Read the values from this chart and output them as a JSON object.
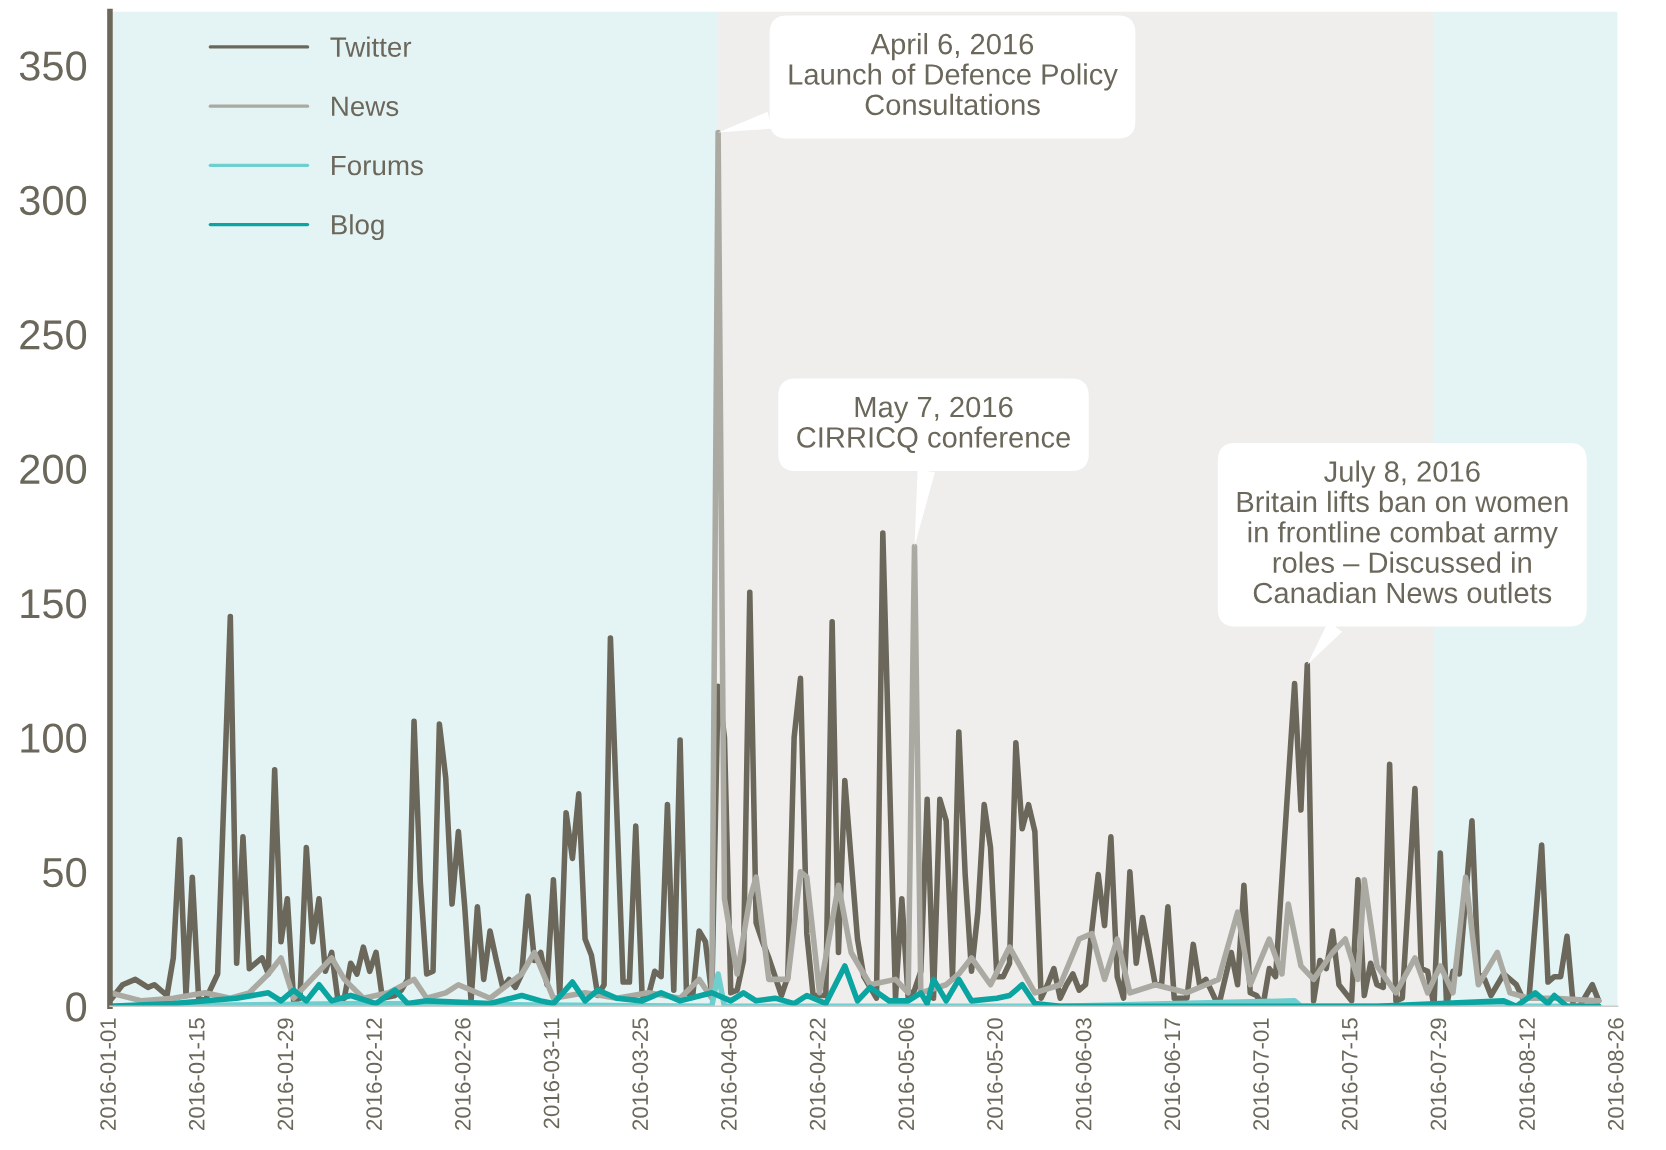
{
  "chart_data": {
    "type": "line",
    "xlim": [
      "2016-01-01",
      "2016-08-26"
    ],
    "xticks": [
      "2016-01-01",
      "2016-01-15",
      "2016-01-29",
      "2016-02-12",
      "2016-02-26",
      "2016-03-11",
      "2016-03-25",
      "2016-04-08",
      "2016-04-22",
      "2016-05-06",
      "2016-05-20",
      "2016-06-03",
      "2016-06-17",
      "2016-07-01",
      "2016-07-15",
      "2016-07-29",
      "2016-08-12",
      "2016-08-26"
    ],
    "ylim": [
      0,
      370
    ],
    "yticks": [
      0,
      50,
      100,
      150,
      200,
      250,
      300,
      350
    ],
    "grid": false,
    "legend": "top left",
    "marker": "none",
    "line_style": "solid",
    "bands": [
      {
        "axis": "x",
        "from": "2016-01-01",
        "to": "2016-04-06",
        "color": "#e4f4f5"
      },
      {
        "axis": "x",
        "from": "2016-04-06",
        "to": "2016-07-28",
        "color": "#efeeed"
      },
      {
        "axis": "x",
        "from": "2016-07-28",
        "to": "2016-08-26",
        "color": "#e4f4f5"
      }
    ],
    "annotations": [
      {
        "text": "April 6, 2016\nLaunch of Defence Policy\nConsultations",
        "x": "2016-04-06",
        "y": 325
      },
      {
        "text": "May 7, 2016\nCIRRICQ conference",
        "x": "2016-05-07",
        "y": 171
      },
      {
        "text": "July 8, 2016\nBritain lifts ban on women\nin frontline combat army\nroles – Discussed in\nCanadian News outlets",
        "x": "2016-07-08",
        "y": 127
      }
    ],
    "series": [
      {
        "name": "Twitter",
        "color": "#6b675a",
        "x": [
          "2016-01-01",
          "2016-01-03",
          "2016-01-05",
          "2016-01-07",
          "2016-01-08",
          "2016-01-10",
          "2016-01-11",
          "2016-01-12",
          "2016-01-13",
          "2016-01-14",
          "2016-01-15",
          "2016-01-16",
          "2016-01-18",
          "2016-01-20",
          "2016-01-21",
          "2016-01-22",
          "2016-01-23",
          "2016-01-25",
          "2016-01-26",
          "2016-01-27",
          "2016-01-28",
          "2016-01-29",
          "2016-01-30",
          "2016-01-31",
          "2016-02-01",
          "2016-02-02",
          "2016-02-03",
          "2016-02-04",
          "2016-02-05",
          "2016-02-06",
          "2016-02-07",
          "2016-02-08",
          "2016-02-09",
          "2016-02-10",
          "2016-02-11",
          "2016-02-12",
          "2016-02-13",
          "2016-02-15",
          "2016-02-16",
          "2016-02-17",
          "2016-02-18",
          "2016-02-19",
          "2016-02-20",
          "2016-02-21",
          "2016-02-22",
          "2016-02-23",
          "2016-02-24",
          "2016-02-25",
          "2016-02-26",
          "2016-02-27",
          "2016-02-28",
          "2016-02-29",
          "2016-03-01",
          "2016-03-02",
          "2016-03-03",
          "2016-03-04",
          "2016-03-05",
          "2016-03-06",
          "2016-03-07",
          "2016-03-08",
          "2016-03-09",
          "2016-03-10",
          "2016-03-11",
          "2016-03-12",
          "2016-03-13",
          "2016-03-14",
          "2016-03-15",
          "2016-03-16",
          "2016-03-17",
          "2016-03-18",
          "2016-03-19",
          "2016-03-20",
          "2016-03-22",
          "2016-03-23",
          "2016-03-24",
          "2016-03-25",
          "2016-03-26",
          "2016-03-27",
          "2016-03-28",
          "2016-03-29",
          "2016-03-30",
          "2016-03-31",
          "2016-04-01",
          "2016-04-02",
          "2016-04-03",
          "2016-04-04",
          "2016-04-05",
          "2016-04-06",
          "2016-04-07",
          "2016-04-08",
          "2016-04-09",
          "2016-04-10",
          "2016-04-11",
          "2016-04-12",
          "2016-04-13",
          "2016-04-14",
          "2016-04-16",
          "2016-04-17",
          "2016-04-18",
          "2016-04-19",
          "2016-04-20",
          "2016-04-21",
          "2016-04-23",
          "2016-04-24",
          "2016-04-25",
          "2016-04-26",
          "2016-04-28",
          "2016-04-29",
          "2016-05-01",
          "2016-05-02",
          "2016-05-04",
          "2016-05-05",
          "2016-05-06",
          "2016-05-07",
          "2016-05-08",
          "2016-05-09",
          "2016-05-10",
          "2016-05-11",
          "2016-05-12",
          "2016-05-13",
          "2016-05-14",
          "2016-05-15",
          "2016-05-16",
          "2016-05-17",
          "2016-05-18",
          "2016-05-19",
          "2016-05-20",
          "2016-05-21",
          "2016-05-22",
          "2016-05-23",
          "2016-05-24",
          "2016-05-25",
          "2016-05-26",
          "2016-05-27",
          "2016-05-28",
          "2016-05-29",
          "2016-05-30",
          "2016-05-31",
          "2016-06-01",
          "2016-06-02",
          "2016-06-03",
          "2016-06-05",
          "2016-06-06",
          "2016-06-07",
          "2016-06-08",
          "2016-06-09",
          "2016-06-10",
          "2016-06-11",
          "2016-06-12",
          "2016-06-13",
          "2016-06-14",
          "2016-06-15",
          "2016-06-16",
          "2016-06-17",
          "2016-06-19",
          "2016-06-20",
          "2016-06-21",
          "2016-06-22",
          "2016-06-24",
          "2016-06-26",
          "2016-06-27",
          "2016-06-28",
          "2016-06-29",
          "2016-06-30",
          "2016-07-01",
          "2016-07-02",
          "2016-07-03",
          "2016-07-06",
          "2016-07-07",
          "2016-07-08",
          "2016-07-09",
          "2016-07-10",
          "2016-07-11",
          "2016-07-12",
          "2016-07-13",
          "2016-07-15",
          "2016-07-16",
          "2016-07-17",
          "2016-07-18",
          "2016-07-19",
          "2016-07-20",
          "2016-07-21",
          "2016-07-22",
          "2016-07-23",
          "2016-07-25",
          "2016-07-26",
          "2016-07-27",
          "2016-07-28",
          "2016-07-29",
          "2016-07-30",
          "2016-07-31",
          "2016-08-01",
          "2016-08-03",
          "2016-08-04",
          "2016-08-05",
          "2016-08-06",
          "2016-08-07",
          "2016-08-08",
          "2016-08-10",
          "2016-08-11",
          "2016-08-12",
          "2016-08-14",
          "2016-08-15",
          "2016-08-16",
          "2016-08-17",
          "2016-08-18",
          "2016-08-19",
          "2016-08-20",
          "2016-08-22",
          "2016-08-23"
        ],
        "values": [
          2,
          8,
          10,
          7,
          8,
          4,
          18,
          62,
          4,
          48,
          3,
          2,
          12,
          145,
          16,
          63,
          14,
          18,
          12,
          88,
          24,
          40,
          2,
          3,
          59,
          24,
          40,
          13,
          20,
          2,
          3,
          16,
          12,
          22,
          13,
          20,
          3,
          4,
          6,
          10,
          106,
          46,
          12,
          13,
          105,
          85,
          38,
          65,
          37,
          2,
          37,
          10,
          28,
          17,
          7,
          10,
          7,
          12,
          41,
          17,
          20,
          8,
          47,
          4,
          72,
          55,
          79,
          25,
          19,
          4,
          8,
          137,
          9,
          9,
          67,
          4,
          4,
          13,
          11,
          75,
          6,
          99,
          5,
          4,
          28,
          24,
          4,
          119,
          100,
          5,
          6,
          17,
          154,
          31,
          24,
          18,
          4,
          11,
          100,
          122,
          27,
          4,
          4,
          143,
          20,
          84,
          25,
          11,
          3,
          176,
          3,
          40,
          3,
          6,
          13,
          77,
          3,
          77,
          69,
          11,
          102,
          49,
          13,
          35,
          75,
          59,
          11,
          11,
          16,
          98,
          66,
          75,
          65,
          3,
          8,
          14,
          3,
          8,
          12,
          6,
          8,
          49,
          30,
          63,
          11,
          3,
          50,
          16,
          33,
          21,
          8,
          8,
          37,
          3,
          3,
          23,
          8,
          10,
          0,
          20,
          8,
          45,
          5,
          4,
          0,
          14,
          11,
          120,
          73,
          127,
          2,
          17,
          14,
          28,
          8,
          2,
          47,
          4,
          16,
          8,
          7,
          90,
          2,
          3,
          81,
          14,
          13,
          0,
          57,
          0,
          13,
          12,
          69,
          12,
          10,
          4,
          8,
          12,
          8,
          3,
          3,
          60,
          9,
          11,
          11,
          26,
          0,
          0,
          8,
          2
        ]
      },
      {
        "name": "News",
        "color": "#abaaa2",
        "x": [
          "2016-01-01",
          "2016-01-06",
          "2016-01-11",
          "2016-01-16",
          "2016-01-20",
          "2016-01-23",
          "2016-01-26",
          "2016-01-28",
          "2016-01-30",
          "2016-02-05",
          "2016-02-07",
          "2016-02-10",
          "2016-02-14",
          "2016-02-18",
          "2016-02-20",
          "2016-02-23",
          "2016-02-25",
          "2016-03-01",
          "2016-03-06",
          "2016-03-08",
          "2016-03-11",
          "2016-03-16",
          "2016-03-21",
          "2016-03-26",
          "2016-03-31",
          "2016-04-03",
          "2016-04-05",
          "2016-04-06",
          "2016-04-07",
          "2016-04-09",
          "2016-04-11",
          "2016-04-12",
          "2016-04-14",
          "2016-04-17",
          "2016-04-19",
          "2016-04-20",
          "2016-04-22",
          "2016-04-25",
          "2016-04-27",
          "2016-04-30",
          "2016-05-04",
          "2016-05-06",
          "2016-05-07",
          "2016-05-08",
          "2016-05-12",
          "2016-05-14",
          "2016-05-16",
          "2016-05-19",
          "2016-05-22",
          "2016-05-26",
          "2016-05-30",
          "2016-06-02",
          "2016-06-04",
          "2016-06-06",
          "2016-06-08",
          "2016-06-10",
          "2016-06-14",
          "2016-06-19",
          "2016-06-24",
          "2016-06-27",
          "2016-06-29",
          "2016-07-02",
          "2016-07-04",
          "2016-07-05",
          "2016-07-07",
          "2016-07-09",
          "2016-07-12",
          "2016-07-14",
          "2016-07-16",
          "2016-07-17",
          "2016-07-19",
          "2016-07-22",
          "2016-07-25",
          "2016-07-27",
          "2016-07-29",
          "2016-07-31",
          "2016-08-02",
          "2016-08-04",
          "2016-08-07",
          "2016-08-09",
          "2016-08-12",
          "2016-08-16",
          "2016-08-23"
        ],
        "values": [
          5,
          2,
          3,
          5,
          3,
          5,
          12,
          18,
          3,
          18,
          10,
          3,
          5,
          10,
          3,
          5,
          8,
          3,
          12,
          20,
          3,
          5,
          3,
          5,
          3,
          10,
          3,
          325,
          40,
          12,
          40,
          48,
          10,
          10,
          50,
          48,
          5,
          45,
          20,
          8,
          10,
          5,
          171,
          5,
          8,
          12,
          18,
          8,
          22,
          5,
          8,
          25,
          27,
          10,
          25,
          5,
          8,
          5,
          10,
          35,
          8,
          25,
          12,
          38,
          15,
          10,
          20,
          25,
          10,
          47,
          15,
          5,
          18,
          5,
          15,
          5,
          48,
          8,
          20,
          5,
          3,
          3,
          2
        ]
      },
      {
        "name": "Forums",
        "color": "#6fcfcf",
        "x": [
          "2016-01-01",
          "2016-02-10",
          "2016-04-05",
          "2016-04-06",
          "2016-04-07",
          "2016-05-30",
          "2016-07-06",
          "2016-07-07",
          "2016-08-23"
        ],
        "values": [
          0,
          1,
          0,
          12,
          0,
          0,
          2,
          0,
          0
        ]
      },
      {
        "name": "Blog",
        "color": "#0aa5a0",
        "x": [
          "2016-01-01",
          "2016-01-11",
          "2016-01-21",
          "2016-01-26",
          "2016-01-28",
          "2016-01-30",
          "2016-02-01",
          "2016-02-03",
          "2016-02-05",
          "2016-02-08",
          "2016-02-12",
          "2016-02-15",
          "2016-02-17",
          "2016-02-20",
          "2016-03-01",
          "2016-03-06",
          "2016-03-09",
          "2016-03-11",
          "2016-03-14",
          "2016-03-16",
          "2016-03-18",
          "2016-03-21",
          "2016-03-25",
          "2016-03-28",
          "2016-03-31",
          "2016-04-05",
          "2016-04-08",
          "2016-04-10",
          "2016-04-12",
          "2016-04-15",
          "2016-04-18",
          "2016-04-20",
          "2016-04-23",
          "2016-04-26",
          "2016-04-28",
          "2016-04-30",
          "2016-05-03",
          "2016-05-06",
          "2016-05-08",
          "2016-05-09",
          "2016-05-10",
          "2016-05-12",
          "2016-05-14",
          "2016-05-16",
          "2016-05-20",
          "2016-05-22",
          "2016-05-24",
          "2016-05-26",
          "2016-05-30",
          "2016-07-19",
          "2016-08-08",
          "2016-08-10",
          "2016-08-13",
          "2016-08-15",
          "2016-08-16",
          "2016-08-18",
          "2016-08-23"
        ],
        "values": [
          0,
          1,
          3,
          5,
          2,
          6,
          2,
          8,
          2,
          4,
          1,
          6,
          1,
          2,
          1,
          4,
          2,
          1,
          9,
          2,
          6,
          3,
          2,
          5,
          2,
          5,
          2,
          5,
          2,
          3,
          1,
          4,
          1,
          15,
          2,
          7,
          2,
          2,
          5,
          1,
          10,
          2,
          10,
          2,
          3,
          4,
          8,
          1,
          0,
          0,
          2,
          0,
          5,
          1,
          4,
          0,
          0
        ]
      }
    ]
  }
}
